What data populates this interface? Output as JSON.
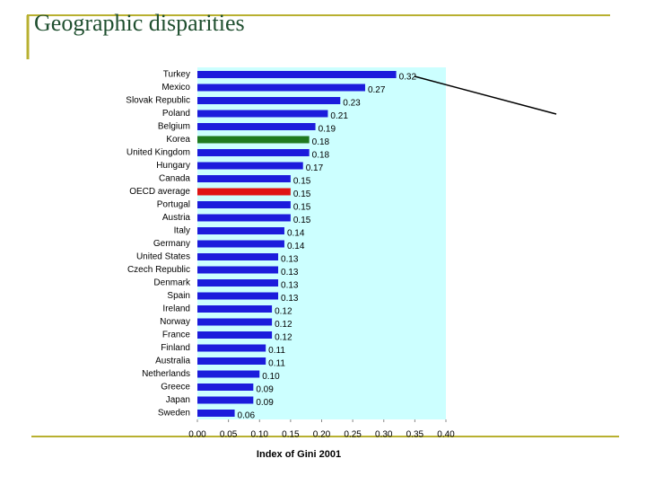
{
  "chart_data": {
    "type": "barh",
    "title": "Geographic disparities",
    "xlabel": "Index of Gini 2001",
    "categories": [
      "Turkey",
      "Mexico",
      "Slovak Republic",
      "Poland",
      "Belgium",
      "Korea",
      "United Kingdom",
      "Hungary",
      "Canada",
      "OECD average",
      "Portugal",
      "Austria",
      "Italy",
      "Germany",
      "United States",
      "Czech Republic",
      "Denmark",
      "Spain",
      "Ireland",
      "Norway",
      "France",
      "Finland",
      "Australia",
      "Netherlands",
      "Greece",
      "Japan",
      "Sweden"
    ],
    "values": [
      0.32,
      0.27,
      0.23,
      0.21,
      0.19,
      0.18,
      0.18,
      0.17,
      0.15,
      0.15,
      0.15,
      0.15,
      0.14,
      0.14,
      0.13,
      0.13,
      0.13,
      0.13,
      0.12,
      0.12,
      0.12,
      0.11,
      0.11,
      0.1,
      0.09,
      0.09,
      0.06
    ],
    "value_labels": [
      "0.32",
      "0.27",
      "0.23",
      "0.21",
      "0.19",
      "0.18",
      "0.18",
      "0.17",
      "0.15",
      "0.15",
      "0.15",
      "0.15",
      "0.14",
      "0.14",
      "0.13",
      "0.13",
      "0.13",
      "0.13",
      "0.12",
      "0.12",
      "0.12",
      "0.11",
      "0.11",
      "0.10",
      "0.09",
      "0.09",
      "0.06"
    ],
    "colors": [
      "#1c1cdc",
      "#1c1cdc",
      "#1c1cdc",
      "#1c1cdc",
      "#1c1cdc",
      "#1f7a1f",
      "#1c1cdc",
      "#1c1cdc",
      "#1c1cdc",
      "#e01414",
      "#1c1cdc",
      "#1c1cdc",
      "#1c1cdc",
      "#1c1cdc",
      "#1c1cdc",
      "#1c1cdc",
      "#1c1cdc",
      "#1c1cdc",
      "#1c1cdc",
      "#1c1cdc",
      "#1c1cdc",
      "#1c1cdc",
      "#1c1cdc",
      "#1c1cdc",
      "#1c1cdc",
      "#1c1cdc",
      "#1c1cdc"
    ],
    "plot_background": "#ccffff",
    "xlim": [
      0,
      0.4
    ],
    "xticks": [
      {
        "value": 0,
        "label": "0.00"
      },
      {
        "value": 0.05,
        "label": "0.05"
      },
      {
        "value": 0.1,
        "label": "0.10"
      },
      {
        "value": 0.15,
        "label": "0.15"
      },
      {
        "value": 0.2,
        "label": "0.20"
      },
      {
        "value": 0.25,
        "label": "0.25"
      },
      {
        "value": 0.3,
        "label": "0.30"
      },
      {
        "value": 0.35,
        "label": "0.35"
      },
      {
        "value": 0.4,
        "label": "0.40"
      }
    ]
  }
}
